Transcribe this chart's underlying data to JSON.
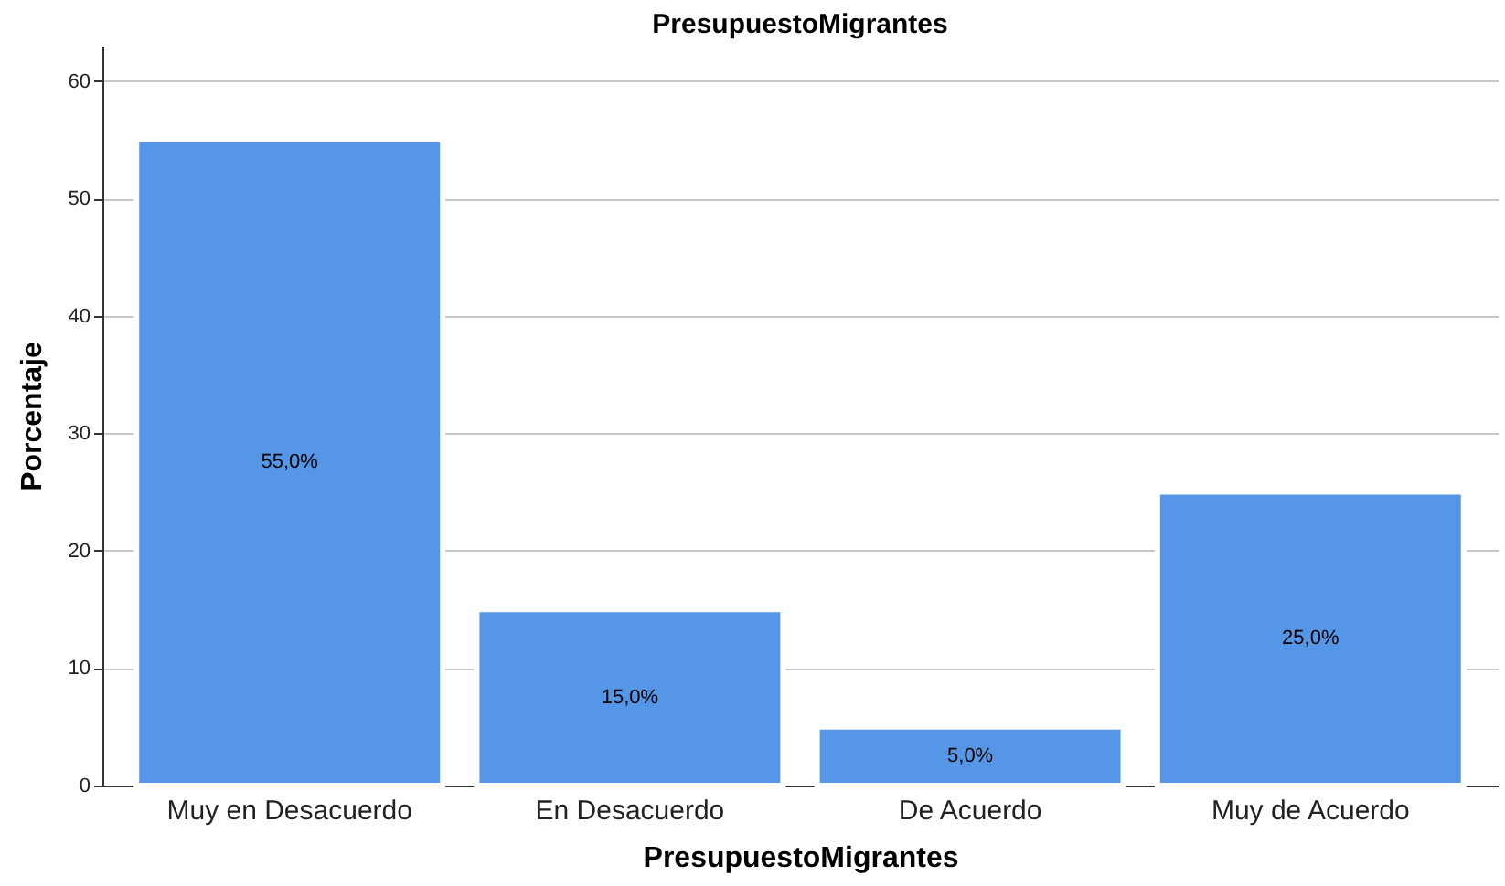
{
  "chart_data": {
    "type": "bar",
    "title": "PresupuestoMigrantes",
    "xlabel": "PresupuestoMigrantes",
    "ylabel": "Porcentaje",
    "categories": [
      "Muy en Desacuerdo",
      "En Desacuerdo",
      "De Acuerdo",
      "Muy de Acuerdo"
    ],
    "values": [
      55,
      15,
      5,
      25
    ],
    "value_labels": [
      "55,0%",
      "15,0%",
      "5,0%",
      "25,0%"
    ],
    "color": "#5596e6",
    "ylim": [
      0,
      63
    ],
    "yticks": [
      0,
      10,
      20,
      30,
      40,
      50,
      60
    ],
    "grid": "y"
  }
}
